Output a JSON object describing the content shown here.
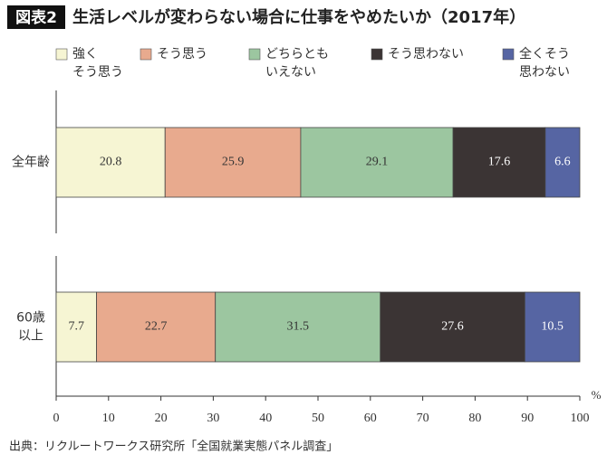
{
  "chart_data": {
    "type": "stacked-barh",
    "figure_label": "図表2",
    "title": "生活レベルが変わらない場合に仕事をやめたいか（2017年）",
    "categories": [
      "全年齢",
      "60歳\n以上"
    ],
    "series": [
      {
        "name": "強く\nそう思う",
        "color": "#f6f5d3",
        "values": [
          20.8,
          7.7
        ]
      },
      {
        "name": "そう思う",
        "color": "#e8aa8e",
        "values": [
          25.9,
          22.7
        ]
      },
      {
        "name": "どちらとも\nいえない",
        "color": "#9cc6a0",
        "values": [
          29.1,
          31.5
        ]
      },
      {
        "name": "そう思わない",
        "color": "#3b3434",
        "values": [
          17.6,
          27.6
        ]
      },
      {
        "name": "全くそう\n思わない",
        "color": "#5665a3",
        "values": [
          6.6,
          10.5
        ]
      }
    ],
    "xlim": [
      0,
      100
    ],
    "xticks": [
      0,
      10,
      20,
      30,
      40,
      50,
      60,
      70,
      80,
      90,
      100
    ],
    "xlabel": "%",
    "source": "出典：リクルートワークス研究所「全国就業実態パネル調査」"
  }
}
